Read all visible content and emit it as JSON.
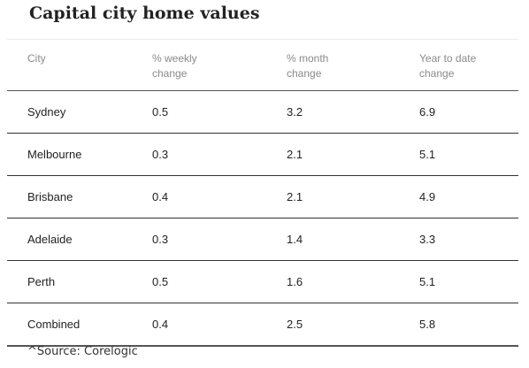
{
  "chart_data": {
    "type": "table",
    "title": "Capital city home values",
    "columns": [
      "City",
      "% weekly\nchange",
      "% month\nchange",
      "Year to date\nchange"
    ],
    "rows": [
      {
        "city": "Sydney",
        "weekly": "0.5",
        "month": "3.2",
        "ytd": "6.9"
      },
      {
        "city": "Melbourne",
        "weekly": "0.3",
        "month": "2.1",
        "ytd": "5.1"
      },
      {
        "city": "Brisbane",
        "weekly": "0.4",
        "month": "2.1",
        "ytd": "4.9"
      },
      {
        "city": "Adelaide",
        "weekly": "0.3",
        "month": "1.4",
        "ytd": "3.3"
      },
      {
        "city": "Perth",
        "weekly": "0.5",
        "month": "1.6",
        "ytd": "5.1"
      },
      {
        "city": "Combined",
        "weekly": "0.4",
        "month": "2.5",
        "ytd": "5.8"
      }
    ],
    "source": "^Source: Corelogic"
  }
}
